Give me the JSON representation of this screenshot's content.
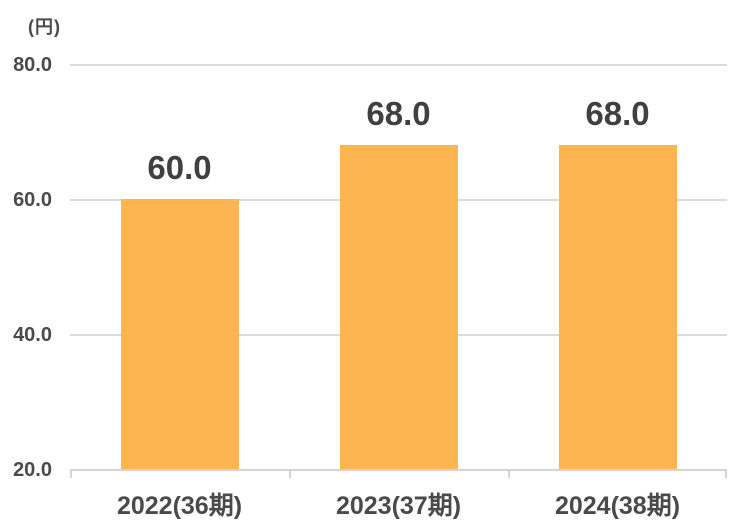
{
  "chart_data": {
    "type": "bar",
    "categories": [
      "2022(36期)",
      "2023(37期)",
      "2024(38期)"
    ],
    "values": [
      60.0,
      68.0,
      68.0
    ],
    "data_labels": [
      "60.0",
      "68.0",
      "68.0"
    ],
    "title": "",
    "xlabel": "",
    "ylabel": "(円)",
    "ylim": [
      20,
      80
    ],
    "yticks": [
      80.0,
      60.0,
      40.0,
      20.0
    ],
    "ytick_labels": [
      "80.0",
      "60.0",
      "40.0",
      "20.0"
    ],
    "grid": true,
    "legend_position": "none",
    "colors": {
      "bar": "#FCB551",
      "gridline": "#DBDBDB",
      "axis_line": "#D4D4D4",
      "data_label_text": "#404040",
      "tick_label_text": "#4A4A4A"
    }
  }
}
